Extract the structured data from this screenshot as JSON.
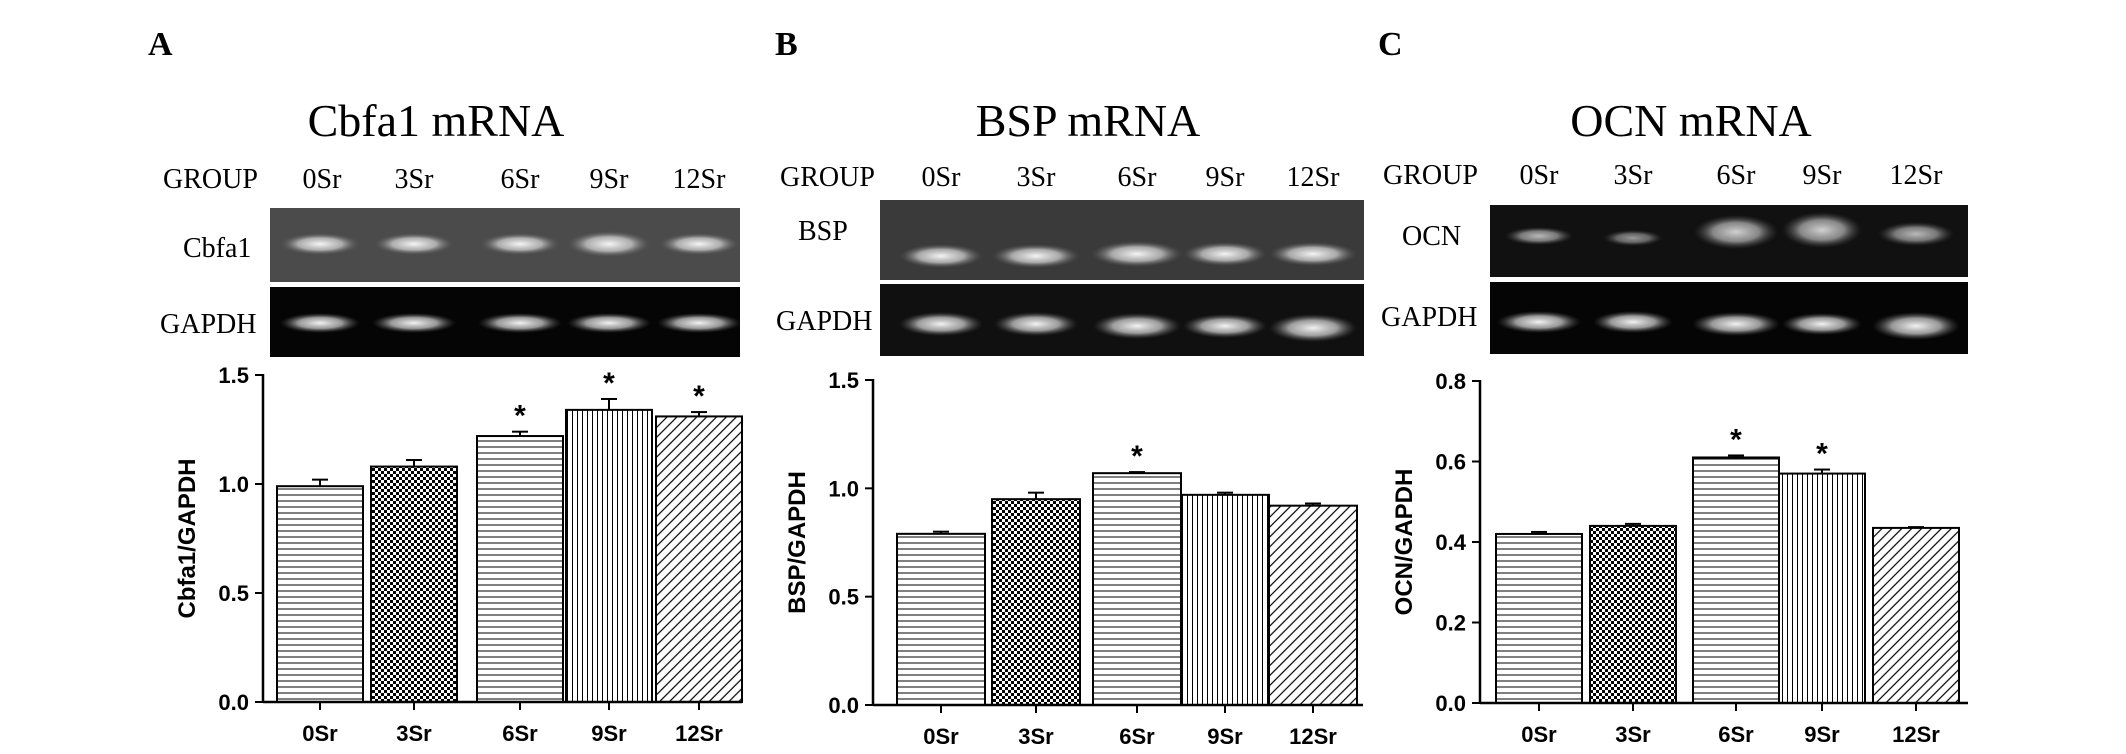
{
  "panels": [
    {
      "letter": "A",
      "title": "Cbfa1 mRNA",
      "gel": {
        "group_label": "GROUP",
        "lane_labels": [
          "0Sr",
          "3Sr",
          "6Sr",
          "9Sr",
          "12Sr"
        ],
        "row_labels": [
          "Cbfa1",
          "GAPDH"
        ]
      }
    },
    {
      "letter": "B",
      "title": "BSP mRNA",
      "gel": {
        "group_label": "GROUP",
        "lane_labels": [
          "0Sr",
          "3Sr",
          "6Sr",
          "9Sr",
          "12Sr"
        ],
        "row_labels": [
          "BSP",
          "GAPDH"
        ]
      }
    },
    {
      "letter": "C",
      "title": "OCN mRNA",
      "gel": {
        "group_label": "GROUP",
        "lane_labels": [
          "0Sr",
          "3Sr",
          "6Sr",
          "9Sr",
          "12Sr"
        ],
        "row_labels": [
          "OCN",
          "GAPDH"
        ]
      }
    }
  ],
  "chart_data": [
    {
      "type": "bar",
      "categories": [
        "0Sr",
        "3Sr",
        "6Sr",
        "9Sr",
        "12Sr"
      ],
      "values": [
        0.99,
        1.08,
        1.22,
        1.34,
        1.31
      ],
      "errors": [
        0.03,
        0.03,
        0.02,
        0.05,
        0.02
      ],
      "significant": [
        false,
        false,
        true,
        true,
        true
      ],
      "significance_marker": "*",
      "ylabel": "Cbfa1/GAPDH",
      "ylim": [
        0,
        1.5
      ],
      "yticks": [
        0.0,
        0.5,
        1.0,
        1.5
      ],
      "ytick_labels": [
        "0.0",
        "0.5",
        "1.0",
        "1.5"
      ],
      "patterns": [
        "hlines",
        "checker",
        "hlines",
        "vlines",
        "diag"
      ],
      "bar_fill": "#ffffff",
      "bar_stroke": "#000000",
      "grid": false
    },
    {
      "type": "bar",
      "categories": [
        "0Sr",
        "3Sr",
        "6Sr",
        "9Sr",
        "12Sr"
      ],
      "values": [
        0.79,
        0.95,
        1.07,
        0.97,
        0.92
      ],
      "errors": [
        0.01,
        0.03,
        0.005,
        0.01,
        0.01
      ],
      "significant": [
        false,
        false,
        true,
        false,
        false
      ],
      "significance_marker": "*",
      "ylabel": "BSP/GAPDH",
      "ylim": [
        0,
        1.5
      ],
      "yticks": [
        0.0,
        0.5,
        1.0,
        1.5
      ],
      "ytick_labels": [
        "0.0",
        "0.5",
        "1.0",
        "1.5"
      ],
      "patterns": [
        "hlines",
        "checker",
        "hlines",
        "vlines",
        "diag"
      ],
      "bar_fill": "#ffffff",
      "bar_stroke": "#000000",
      "grid": false
    },
    {
      "type": "bar",
      "categories": [
        "0Sr",
        "3Sr",
        "6Sr",
        "9Sr",
        "12Sr"
      ],
      "values": [
        0.42,
        0.44,
        0.61,
        0.57,
        0.435
      ],
      "errors": [
        0.005,
        0.005,
        0.005,
        0.01,
        0.002
      ],
      "significant": [
        false,
        false,
        true,
        true,
        false
      ],
      "significance_marker": "*",
      "ylabel": "OCN/GAPDH",
      "ylim": [
        0,
        0.8
      ],
      "yticks": [
        0.0,
        0.2,
        0.4,
        0.6,
        0.8
      ],
      "ytick_labels": [
        "0.0",
        "0.2",
        "0.4",
        "0.6",
        "0.8"
      ],
      "patterns": [
        "hlines",
        "checker",
        "hlines",
        "vlines",
        "diag"
      ],
      "bar_fill": "#ffffff",
      "bar_stroke": "#000000",
      "grid": false
    }
  ]
}
